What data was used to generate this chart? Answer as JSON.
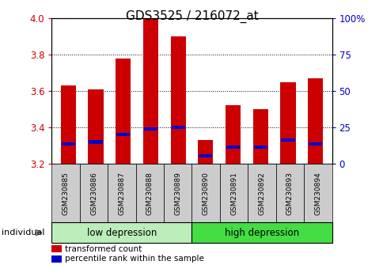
{
  "title": "GDS3525 / 216072_at",
  "samples": [
    "GSM230885",
    "GSM230886",
    "GSM230887",
    "GSM230888",
    "GSM230889",
    "GSM230890",
    "GSM230891",
    "GSM230892",
    "GSM230893",
    "GSM230894"
  ],
  "red_values": [
    3.63,
    3.61,
    3.78,
    4.0,
    3.9,
    3.33,
    3.52,
    3.5,
    3.65,
    3.67
  ],
  "blue_values": [
    3.31,
    3.32,
    3.36,
    3.39,
    3.4,
    3.245,
    3.29,
    3.29,
    3.33,
    3.31
  ],
  "baseline": 3.2,
  "ylim_left": [
    3.2,
    4.0
  ],
  "ylim_right": [
    0,
    100
  ],
  "yticks_left": [
    3.2,
    3.4,
    3.6,
    3.8,
    4.0
  ],
  "yticks_right": [
    0,
    25,
    50,
    75,
    100
  ],
  "ytick_labels_right": [
    "0",
    "25",
    "50",
    "75",
    "100%"
  ],
  "group1_label": "low depression",
  "group2_label": "high depression",
  "group1_count": 5,
  "group2_count": 5,
  "individual_label": "individual",
  "legend1": "transformed count",
  "legend2": "percentile rank within the sample",
  "bar_color": "#cc0000",
  "blue_color": "#0000cc",
  "group1_color": "#bbeebb",
  "group2_color": "#44dd44",
  "xtick_bg_color": "#cccccc",
  "tick_label_color_left": "#cc0000",
  "tick_label_color_right": "#0000cc",
  "bar_width": 0.55,
  "title_fontsize": 11
}
